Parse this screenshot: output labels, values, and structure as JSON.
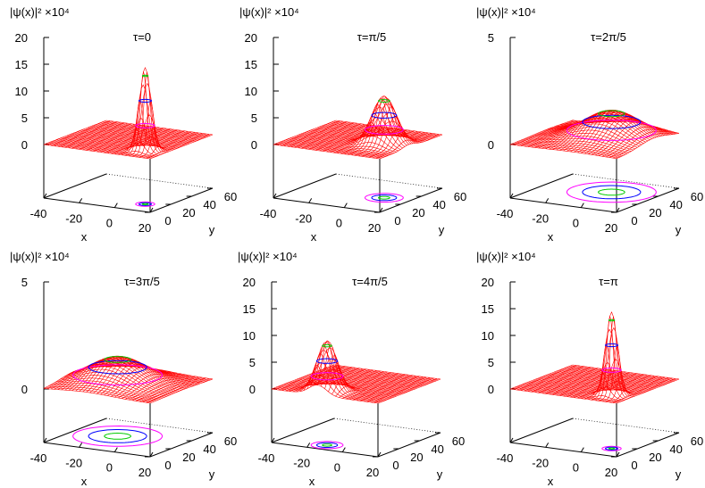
{
  "chart_data": [
    {
      "type": "surface",
      "title": "τ=0",
      "zlabel": "|ψ(x)|² ×10⁴",
      "zlim": [
        0,
        20
      ],
      "zticks": [
        "0",
        "5",
        "10",
        "15",
        "20"
      ],
      "xlabel": "x",
      "ylabel": "y",
      "xlim": [
        -40,
        20
      ],
      "ylim": [
        0,
        60
      ],
      "xticks": [
        "-40",
        "-20",
        "0",
        "20"
      ],
      "yticks": [
        "0",
        "20",
        "40",
        "60"
      ],
      "peak": {
        "x": 9,
        "y": 14,
        "height": 15.5,
        "width": 3
      }
    },
    {
      "type": "surface",
      "title": "τ=π/5",
      "zlabel": "|ψ(x)|² ×10⁴",
      "zlim": [
        0,
        20
      ],
      "zticks": [
        "0",
        "5",
        "10",
        "15",
        "20"
      ],
      "xlabel": "x",
      "ylabel": "y",
      "xlim": [
        -40,
        20
      ],
      "ylim": [
        0,
        60
      ],
      "xticks": [
        "-40",
        "-20",
        "0",
        "20"
      ],
      "yticks": [
        "0",
        "20",
        "40",
        "60"
      ],
      "peak": {
        "x": 6,
        "y": 28,
        "height": 9,
        "width": 6
      }
    },
    {
      "type": "surface",
      "title": "τ=2π/5",
      "zlabel": "|ψ(x)|² ×10⁴",
      "zlim": [
        0,
        5
      ],
      "zticks": [
        "0",
        "5"
      ],
      "xlabel": "x",
      "ylabel": "y",
      "xlim": [
        -40,
        20
      ],
      "ylim": [
        0,
        60
      ],
      "xticks": [
        "-40",
        "-20",
        "0",
        "20"
      ],
      "yticks": [
        "0",
        "20",
        "40",
        "60"
      ],
      "peak": {
        "x": -4,
        "y": 36,
        "height": 1.3,
        "width": 14
      }
    },
    {
      "type": "surface",
      "title": "τ=3π/5",
      "zlabel": "|ψ(x)|² ×10⁴",
      "zlim": [
        0,
        5
      ],
      "zticks": [
        "0",
        "5"
      ],
      "xlabel": "x",
      "ylabel": "y",
      "xlim": [
        -40,
        20
      ],
      "ylim": [
        0,
        60
      ],
      "xticks": [
        "-40",
        "-20",
        "0",
        "20"
      ],
      "yticks": [
        "0",
        "20",
        "40",
        "60"
      ],
      "peak": {
        "x": -16,
        "y": 30,
        "height": 1.2,
        "width": 14
      }
    },
    {
      "type": "surface",
      "title": "τ=4π/5",
      "zlabel": "|ψ(x)|² ×10⁴",
      "zlim": [
        0,
        20
      ],
      "zticks": [
        "0",
        "5",
        "10",
        "15",
        "20"
      ],
      "xlabel": "x",
      "ylabel": "y",
      "xlim": [
        -40,
        20
      ],
      "ylim": [
        0,
        60
      ],
      "xticks": [
        "-40",
        "-20",
        "0",
        "20"
      ],
      "yticks": [
        "0",
        "20",
        "40",
        "60"
      ],
      "peak": {
        "x": -14,
        "y": 9,
        "height": 9.5,
        "width": 5
      }
    },
    {
      "type": "surface",
      "title": "τ=π",
      "zlabel": "|ψ(x)|² ×10⁴",
      "zlim": [
        0,
        20
      ],
      "zticks": [
        "0",
        "5",
        "10",
        "15",
        "20"
      ],
      "xlabel": "x",
      "ylabel": "y",
      "xlim": [
        -40,
        20
      ],
      "ylim": [
        0,
        60
      ],
      "xticks": [
        "-40",
        "-20",
        "0",
        "20"
      ],
      "yticks": [
        "0",
        "20",
        "40",
        "60"
      ],
      "peak": {
        "x": 9,
        "y": 14,
        "height": 15.5,
        "width": 3
      }
    }
  ],
  "colors": {
    "surface": "#ff0000",
    "contours": [
      "#ff00ff",
      "#0000ff",
      "#00cc00",
      "#00cccc",
      "#ffcc00"
    ],
    "axes": "#000000"
  }
}
